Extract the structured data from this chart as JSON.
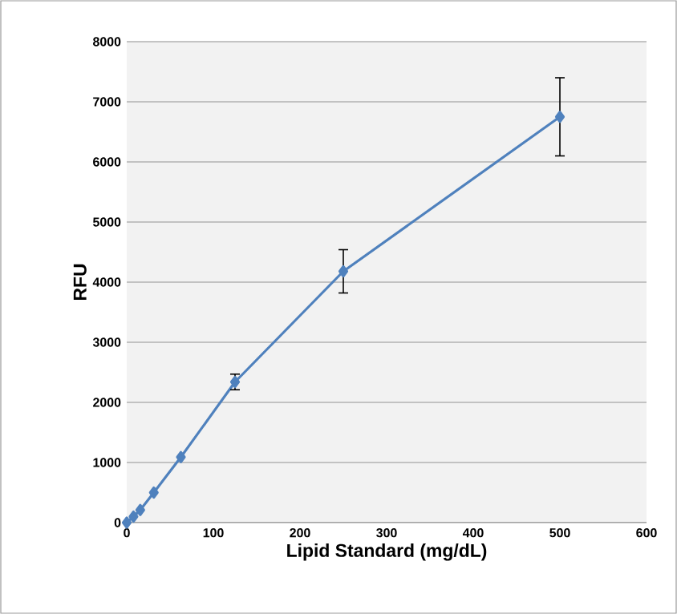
{
  "chart_data": {
    "type": "line",
    "xlabel": "Lipid Standard (mg/dL)",
    "ylabel": "RFU",
    "x": [
      0,
      7.8,
      15.6,
      31.25,
      62.5,
      125,
      250,
      500
    ],
    "series": [
      {
        "color": "#4f81bd",
        "values": [
          0,
          100,
          210,
          500,
          1090,
          2340,
          4180,
          6750
        ],
        "errors": [
          null,
          null,
          null,
          null,
          null,
          130,
          360,
          650
        ]
      }
    ],
    "xlim": [
      0,
      600
    ],
    "xticks": [
      0,
      100,
      200,
      300,
      400,
      500,
      600
    ],
    "ylim": [
      0,
      8000
    ],
    "yticks": [
      0,
      1000,
      2000,
      3000,
      4000,
      5000,
      6000,
      7000,
      8000
    ],
    "grid": "y",
    "marker": "diamond",
    "line_style": "solid"
  }
}
